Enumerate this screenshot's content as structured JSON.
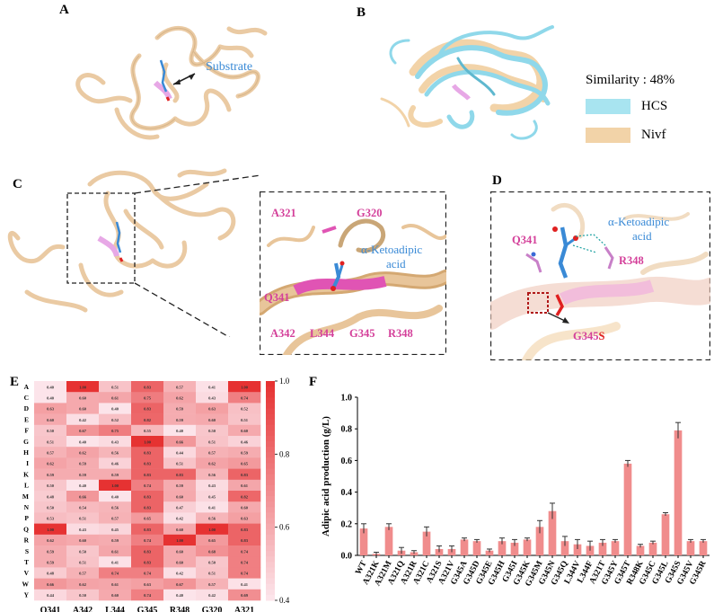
{
  "panels": {
    "a": {
      "label": "A",
      "substrate": "Substrate"
    },
    "b": {
      "label": "B",
      "similarity": "Similarity : 48%",
      "legend": [
        {
          "name": "HCS",
          "color": "#a8e4f0"
        },
        {
          "name": "Nivf",
          "color": "#f2d3a8"
        }
      ]
    },
    "c": {
      "label": "C",
      "residues": [
        "A321",
        "G320",
        "Q341",
        "A342",
        "L344",
        "G345",
        "R348"
      ],
      "ligand": [
        "α-Ketoadipic",
        "acid"
      ]
    },
    "d": {
      "label": "D",
      "residues": [
        "Q341",
        "R348"
      ],
      "ligand": [
        "α-Ketoadipic",
        "acid"
      ],
      "mutation": {
        "from": "G345",
        "to": "S"
      }
    },
    "e": {
      "label": "E"
    },
    "f": {
      "label": "F"
    }
  },
  "colors": {
    "protein": "#f2d3a8",
    "protein_stroke": "#c9a677",
    "hcs": "#8fd8ea",
    "highlight": "#e054b4",
    "ligand": "#3a8ad6",
    "bar": "#f08c8c"
  },
  "chart_data": [
    {
      "type": "heatmap",
      "x_categories": [
        "Q341",
        "A342",
        "L344",
        "G345",
        "R348",
        "G320",
        "A321"
      ],
      "y_categories": [
        "A",
        "C",
        "D",
        "E",
        "F",
        "G",
        "H",
        "I",
        "K",
        "L",
        "M",
        "N",
        "P",
        "Q",
        "R",
        "S",
        "T",
        "V",
        "W",
        "Y"
      ],
      "values": [
        [
          0.4,
          1.0,
          0.51,
          0.83,
          0.57,
          0.41,
          1.0
        ],
        [
          0.4,
          0.6,
          0.61,
          0.75,
          0.62,
          0.43,
          0.74
        ],
        [
          0.63,
          0.6,
          0.4,
          0.83,
          0.59,
          0.63,
          0.52
        ],
        [
          0.6,
          0.42,
          0.52,
          0.82,
          0.59,
          0.6,
          0.51
        ],
        [
          0.5,
          0.67,
          0.75,
          0.55,
          0.4,
          0.5,
          0.6
        ],
        [
          0.51,
          0.4,
          0.43,
          1.0,
          0.66,
          0.51,
          0.46
        ],
        [
          0.57,
          0.62,
          0.56,
          0.83,
          0.44,
          0.57,
          0.59
        ],
        [
          0.62,
          0.59,
          0.46,
          0.83,
          0.51,
          0.62,
          0.65
        ],
        [
          0.59,
          0.59,
          0.59,
          0.83,
          0.83,
          0.56,
          0.83
        ],
        [
          0.5,
          0.4,
          1.0,
          0.74,
          0.59,
          0.43,
          0.61
        ],
        [
          0.48,
          0.66,
          0.4,
          0.83,
          0.6,
          0.45,
          0.82
        ],
        [
          0.5,
          0.54,
          0.56,
          0.83,
          0.47,
          0.41,
          0.6
        ],
        [
          0.53,
          0.51,
          0.57,
          0.65,
          0.42,
          0.56,
          0.63
        ],
        [
          1.0,
          0.43,
          0.45,
          0.83,
          0.6,
          1.0,
          0.83
        ],
        [
          0.62,
          0.6,
          0.59,
          0.74,
          1.0,
          0.65,
          0.83
        ],
        [
          0.59,
          0.5,
          0.61,
          0.83,
          0.6,
          0.68,
          0.74
        ],
        [
          0.59,
          0.51,
          0.41,
          0.83,
          0.6,
          0.5,
          0.74
        ],
        [
          0.48,
          0.57,
          0.74,
          0.74,
          0.42,
          0.51,
          0.74
        ],
        [
          0.66,
          0.62,
          0.61,
          0.63,
          0.67,
          0.57,
          0.41
        ],
        [
          0.44,
          0.5,
          0.6,
          0.74,
          0.4,
          0.42,
          0.69
        ]
      ],
      "colorbar": {
        "min": 0.4,
        "max": 1.0,
        "ticks": [
          "0.4",
          "0.6",
          "0.8",
          "1.0"
        ]
      }
    },
    {
      "type": "bar",
      "ylabel": "Adipic acid production  (g/L)",
      "ylim": [
        0,
        1.0
      ],
      "yticks": [
        "0.0",
        "0.2",
        "0.4",
        "0.6",
        "0.8",
        "1.0"
      ],
      "categories": [
        "WT",
        "A321K",
        "A321M",
        "A321Q",
        "A321R",
        "A321C",
        "A321S",
        "A321V",
        "G345A",
        "G345D",
        "G345E",
        "G345H",
        "G345I",
        "G345K",
        "G345M",
        "G345N",
        "G345Q",
        "L344V",
        "L344F",
        "A321T",
        "G345Y",
        "G345T",
        "R348K",
        "G345C",
        "G345L",
        "G345S",
        "G345V",
        "G345R"
      ],
      "values": [
        0.17,
        0.01,
        0.18,
        0.03,
        0.02,
        0.15,
        0.04,
        0.04,
        0.1,
        0.09,
        0.03,
        0.09,
        0.08,
        0.1,
        0.18,
        0.28,
        0.09,
        0.07,
        0.06,
        0.08,
        0.09,
        0.58,
        0.06,
        0.08,
        0.26,
        0.79,
        0.09,
        0.09
      ],
      "errors": [
        0.03,
        0.01,
        0.02,
        0.02,
        0.01,
        0.03,
        0.02,
        0.02,
        0.01,
        0.01,
        0.01,
        0.02,
        0.02,
        0.01,
        0.04,
        0.05,
        0.03,
        0.03,
        0.03,
        0.02,
        0.01,
        0.02,
        0.01,
        0.01,
        0.01,
        0.05,
        0.01,
        0.01
      ]
    }
  ]
}
